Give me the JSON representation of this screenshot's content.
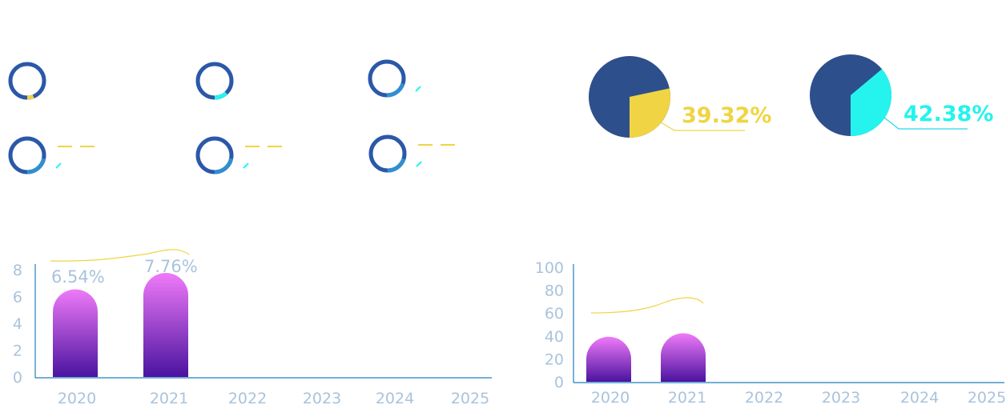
{
  "colors": {
    "ring_track": "#2b58a8",
    "ring_base": "#2f7bd0",
    "yellow": "#f0d443",
    "cyan": "#25f3ee",
    "pie_navy": "#2d4f8c",
    "axis": "#1e7fc1",
    "tick": "#a9c3dc",
    "bar_top": "#ef7af8",
    "bar_bottom": "#4a13a0",
    "curve": "#f0d443"
  },
  "rings": [
    {
      "value": 0.06,
      "accent": "yellow",
      "dash": false
    },
    {
      "value": 0.12,
      "accent": "cyan",
      "dash": false
    },
    {
      "value": 0.2,
      "accent": "blue",
      "dash": true
    },
    {
      "value": 0.22,
      "accent": "blue",
      "dash": true
    },
    {
      "value": 0.22,
      "accent": "blue",
      "dash": true
    },
    {
      "value": 0.2,
      "accent": "blue",
      "dash": true
    }
  ],
  "pies": [
    {
      "label": "39.32%",
      "value": 39.32,
      "color": "yellow"
    },
    {
      "label": "42.38%",
      "value": 42.38,
      "color": "cyan"
    }
  ],
  "chart_data": [
    {
      "type": "bar",
      "categories": [
        "2020",
        "2021",
        "2022",
        "2023",
        "2024",
        "2025"
      ],
      "values": [
        6.54,
        7.76,
        null,
        null,
        null,
        null
      ],
      "data_labels": [
        "6.54%",
        "7.76%",
        "",
        "",
        "",
        ""
      ],
      "yticks": [
        "0",
        "2",
        "4",
        "6",
        "8"
      ],
      "ylim": [
        0,
        8
      ],
      "grid": false
    },
    {
      "type": "bar",
      "categories": [
        "2020",
        "2021",
        "2022",
        "2023",
        "2024",
        "2025"
      ],
      "values": [
        39.32,
        42.38,
        null,
        null,
        null,
        null
      ],
      "yticks": [
        "0",
        "20",
        "40",
        "60",
        "80",
        "100"
      ],
      "ylim": [
        0,
        100
      ],
      "grid": false
    }
  ]
}
